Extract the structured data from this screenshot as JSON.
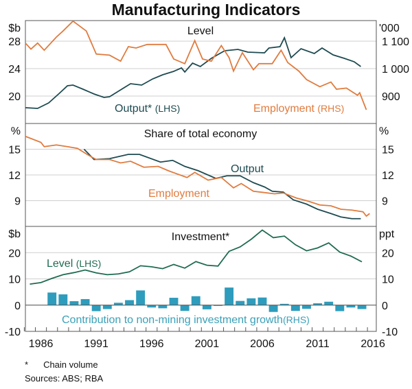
{
  "chart_data": [
    {
      "type": "line",
      "title": "Manufacturing Indicators",
      "panel_title": "Level",
      "left_unit": "$b",
      "right_unit": "'000",
      "ylim_left": [
        16,
        31
      ],
      "ylim_right": [
        800,
        1175
      ],
      "yticks_left": [
        "20",
        "24",
        "28"
      ],
      "yticks_right": [
        "900",
        "1 000",
        "1 100"
      ],
      "grid": true,
      "series": [
        {
          "name": "Output* (LHS)",
          "axis": "left",
          "color": "#1d4a50",
          "x": [
            1984.6,
            1985.7,
            1986.7,
            1987.6,
            1988.4,
            1988.9,
            1989.8,
            1990.8,
            1991.7,
            1992.2,
            1993.2,
            1994.1,
            1995.1,
            1996.1,
            1997.0,
            1998.0,
            1998.7,
            1999.0,
            1999.7,
            2000.4,
            2001.4,
            2002.6,
            2003.8,
            2004.7,
            2006.2,
            2006.6,
            2007.6,
            2008.0,
            2008.6,
            2009.5,
            2010.7,
            2011.4,
            2012.4,
            2013.4,
            2014.3,
            2014.9
          ],
          "y": [
            18.3,
            18.2,
            19.0,
            20.3,
            21.5,
            21.6,
            21.0,
            20.3,
            19.8,
            19.9,
            20.9,
            21.8,
            21.6,
            22.5,
            23.1,
            23.6,
            24.1,
            23.5,
            24.8,
            24.3,
            25.5,
            26.6,
            26.8,
            26.4,
            26.3,
            27.0,
            27.2,
            28.5,
            25.6,
            26.9,
            26.2,
            27.0,
            26.0,
            25.5,
            25.0,
            24.3
          ]
        },
        {
          "name": "Employment (RHS)",
          "axis": "right",
          "color": "#e07b3e",
          "x": [
            1984.6,
            1985.1,
            1985.7,
            1986.3,
            1987.4,
            1988.0,
            1988.9,
            1990.1,
            1991.0,
            1992.2,
            1993.2,
            1993.9,
            1994.6,
            1995.6,
            1997.3,
            1998.0,
            1999.0,
            1999.9,
            2000.6,
            2001.4,
            2002.3,
            2003.0,
            2003.4,
            2004.2,
            2005.2,
            2005.7,
            2006.9,
            2007.7,
            2008.3,
            2009.3,
            2010.0,
            2011.2,
            2012.2,
            2012.7,
            2013.6,
            2014.6,
            2014.8,
            2015.4
          ],
          "y": [
            1093,
            1071,
            1093,
            1067,
            1115,
            1137,
            1173,
            1137,
            1053,
            1049,
            1027,
            1080,
            1075,
            1088,
            1088,
            1035,
            1018,
            1102,
            1035,
            1027,
            1084,
            1040,
            991,
            1058,
            996,
            1018,
            1018,
            1067,
            1022,
            991,
            960,
            934,
            951,
            925,
            929,
            903,
            912,
            850
          ]
        }
      ]
    },
    {
      "type": "line",
      "panel_title": "Share of total economy",
      "left_unit": "%",
      "right_unit": "%",
      "ylim": [
        6,
        18
      ],
      "yticks": [
        "9",
        "12",
        "15"
      ],
      "grid": true,
      "series": [
        {
          "name": "Output",
          "color": "#1d4a50",
          "x": [
            1989.9,
            1990.8,
            1992.2,
            1993.9,
            1994.9,
            1996.8,
            1997.9,
            1999.0,
            2000.2,
            2001.8,
            2002.8,
            2004.0,
            2005.2,
            2006.2,
            2006.9,
            2007.9,
            2008.8,
            2010.0,
            2011.0,
            2012.2,
            2013.1,
            2014.1,
            2014.9
          ],
          "y": [
            15.0,
            13.8,
            13.9,
            14.4,
            14.4,
            13.5,
            13.7,
            13.0,
            12.5,
            11.6,
            11.9,
            11.9,
            11.1,
            10.6,
            10.1,
            10.0,
            9.1,
            8.6,
            8.0,
            7.5,
            7.1,
            6.9,
            6.9
          ]
        },
        {
          "name": "Employment",
          "color": "#e07b3e",
          "x": [
            1984.6,
            1986.0,
            1986.3,
            1987.4,
            1988.4,
            1989.3,
            1990.3,
            1991.0,
            1992.2,
            1993.2,
            1994.1,
            1995.3,
            1996.6,
            1997.5,
            1999.2,
            1999.9,
            2001.1,
            2002.3,
            2003.4,
            2004.1,
            2005.2,
            2007.1,
            2007.9,
            2009.1,
            2010.0,
            2011.2,
            2012.2,
            2013.1,
            2014.1,
            2015.1,
            2015.4,
            2015.7
          ],
          "y": [
            16.5,
            15.8,
            15.3,
            15.5,
            15.3,
            15.1,
            14.3,
            13.8,
            13.8,
            13.4,
            13.6,
            12.9,
            13.0,
            12.5,
            11.7,
            12.3,
            11.4,
            11.7,
            10.5,
            11.0,
            10.1,
            9.8,
            9.9,
            9.3,
            9.0,
            8.5,
            8.4,
            8.0,
            7.9,
            7.7,
            7.2,
            7.5
          ]
        }
      ]
    },
    {
      "type": "bar+line",
      "panel_title": "Investment*",
      "left_unit": "$b",
      "right_unit": "ppt",
      "ylim": [
        -10,
        30
      ],
      "yticks": [
        "-10",
        "0",
        "10",
        "20"
      ],
      "grid": true,
      "xlabel_ticks": [
        "1986",
        "1991",
        "1996",
        "2001",
        "2006",
        "2011",
        "2016"
      ],
      "xlim": [
        1984.6,
        2016.3
      ],
      "series": [
        {
          "name": "Level (LHS)",
          "type": "line",
          "color": "#1e6b50",
          "x": [
            1985,
            1986,
            1987,
            1988,
            1989,
            1990,
            1991,
            1992,
            1993,
            1994,
            1995,
            1996,
            1997,
            1998,
            1999,
            2000,
            2001,
            2002,
            2003,
            2004,
            2005,
            2006,
            2007,
            2008,
            2009,
            2010,
            2011,
            2012,
            2013,
            2014,
            2015
          ],
          "y": [
            8.0,
            8.6,
            10.2,
            11.6,
            12.4,
            13.4,
            12.3,
            11.6,
            11.9,
            12.7,
            15.0,
            14.6,
            13.9,
            15.5,
            14.1,
            16.6,
            15.2,
            14.9,
            20.5,
            22.2,
            25.1,
            28.6,
            25.7,
            26.3,
            23.0,
            20.7,
            21.8,
            23.7,
            20.2,
            18.7,
            16.5
          ]
        },
        {
          "name": "Contribution to non-mining investment growth (RHS)",
          "type": "bar",
          "color": "#2e9cbc",
          "x": [
            1987,
            1988,
            1989,
            1990,
            1991,
            1992,
            1993,
            1994,
            1995,
            1996,
            1997,
            1998,
            1999,
            2000,
            2001,
            2002,
            2003,
            2004,
            2005,
            2006,
            2007,
            2008,
            2009,
            2010,
            2011,
            2012,
            2013,
            2014,
            2015
          ],
          "y": [
            4.8,
            4.1,
            1.5,
            2.3,
            -2.3,
            -1.5,
            0.9,
            1.9,
            5.6,
            -0.9,
            -1.2,
            2.8,
            -2.2,
            3.4,
            -1.6,
            -0.3,
            6.7,
            1.6,
            2.6,
            2.9,
            -2.6,
            0.5,
            -2.2,
            -1.4,
            0.7,
            1.3,
            -2.3,
            -0.9,
            -1.5
          ]
        }
      ]
    }
  ],
  "labels": {
    "output_level": "Output*",
    "output_level_rhs": "(LHS)",
    "employment_level": "Employment",
    "employment_level_rhs": "(RHS)",
    "output_share": "Output",
    "employment_share": "Employment",
    "inv_level": "Level",
    "inv_level_lhs": "(LHS)",
    "contribution": "Contribution to non-mining investment growth",
    "contribution_rhs": "(RHS)"
  },
  "footnotes": {
    "star": "*",
    "chain": "Chain volume",
    "sources_label": "Sources:",
    "sources": "ABS; RBA"
  }
}
